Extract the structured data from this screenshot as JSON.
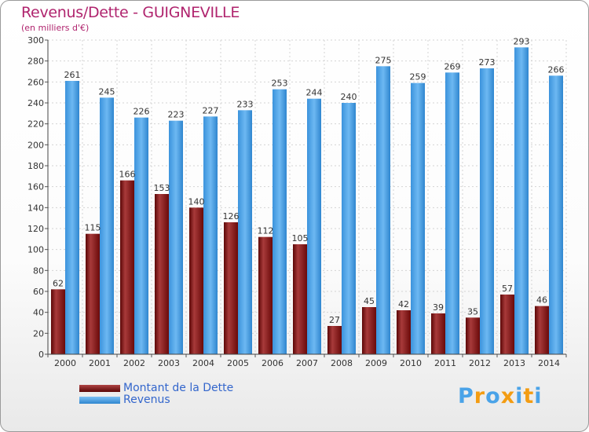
{
  "header": {
    "title": "Revenus/Dette - GUIGNEVILLE",
    "subtitle": "(en milliers d'€)"
  },
  "chart_data": {
    "type": "bar",
    "title": "Revenus/Dette - GUIGNEVILLE",
    "ylabel": "(en milliers d'€)",
    "xlabel": "",
    "ylim": [
      0,
      300
    ],
    "ytick_step": 20,
    "grid": true,
    "legend_position": "bottom-left",
    "categories": [
      "2000",
      "2001",
      "2002",
      "2003",
      "2004",
      "2005",
      "2006",
      "2007",
      "2008",
      "2009",
      "2010",
      "2011",
      "2012",
      "2013",
      "2014"
    ],
    "series": [
      {
        "name": "Montant de la Dette",
        "color": "#8b1a1a",
        "values": [
          62,
          115,
          166,
          153,
          140,
          126,
          112,
          105,
          27,
          45,
          42,
          39,
          35,
          57,
          46
        ]
      },
      {
        "name": "Revenus",
        "color": "#4aa3e8",
        "values": [
          261,
          245,
          226,
          223,
          227,
          233,
          253,
          244,
          240,
          275,
          259,
          269,
          273,
          293,
          266
        ]
      }
    ]
  },
  "legend": {
    "dette_label": "Montant de la Dette",
    "revenus_label": "Revenus"
  },
  "logo": {
    "letters": [
      "P",
      "r",
      "o",
      "x",
      "i",
      "t",
      "i"
    ],
    "colors": [
      "#4aa3e8",
      "#f39c12",
      "#4aa3e8",
      "#f39c12",
      "#4aa3e8",
      "#f39c12",
      "#4aa3e8"
    ]
  }
}
